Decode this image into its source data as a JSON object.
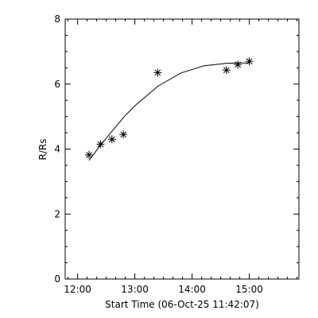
{
  "chart_data": {
    "type": "scatter",
    "xlabel": "Start Time (06-Oct-25 11:42:07)",
    "ylabel": "R/Rs",
    "xlim": [
      "11:47",
      "15:52"
    ],
    "ylim": [
      0,
      8
    ],
    "x_ticks": [
      "12:00",
      "13:00",
      "14:00",
      "15:00"
    ],
    "y_ticks": [
      "0",
      "2",
      "4",
      "6",
      "8"
    ],
    "grid": false,
    "marker": "asterisk",
    "points": {
      "x": [
        "12:12",
        "12:24",
        "12:36",
        "12:48",
        "13:24",
        "14:36",
        "14:48",
        "15:00"
      ],
      "y": [
        3.82,
        4.15,
        4.3,
        4.45,
        6.35,
        6.43,
        6.6,
        6.7
      ]
    },
    "fit_line": {
      "x": [
        "12:12",
        "12:24",
        "12:48",
        "13:00",
        "13:24",
        "13:48",
        "14:12",
        "14:36",
        "14:48",
        "15:00"
      ],
      "y": [
        3.65,
        4.12,
        4.97,
        5.33,
        5.93,
        6.34,
        6.56,
        6.64,
        6.65,
        6.65
      ]
    }
  }
}
